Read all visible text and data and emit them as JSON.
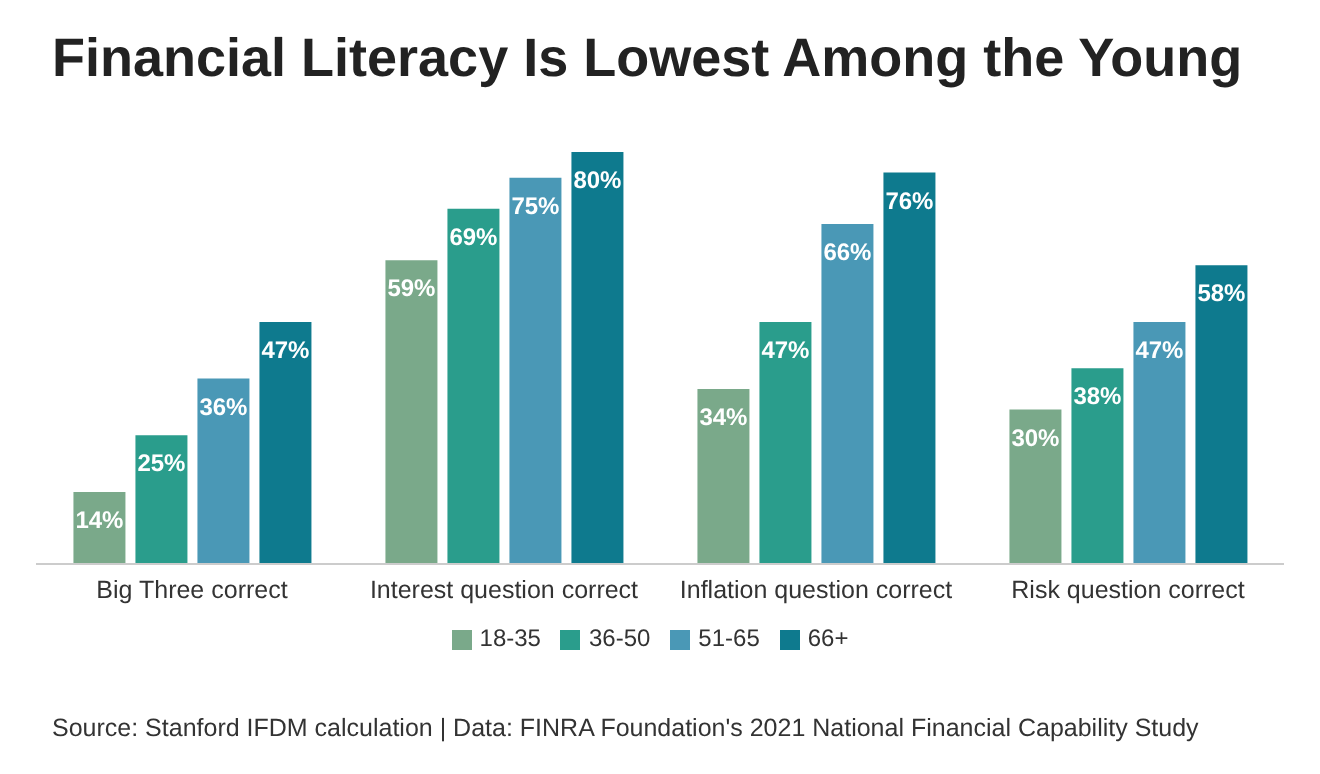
{
  "chart_data": {
    "type": "bar",
    "title": "Financial Literacy Is Lowest Among the Young",
    "categories": [
      "Big Three correct",
      "Interest question correct",
      "Inflation question correct",
      "Risk question correct"
    ],
    "series": [
      {
        "name": "18-35",
        "color": "#7aa98a",
        "values": [
          14,
          59,
          34,
          30
        ],
        "value_labels": [
          "14%",
          "59%",
          "34%",
          "30%"
        ]
      },
      {
        "name": "36-50",
        "color": "#2a9d8c",
        "values": [
          25,
          69,
          47,
          38
        ],
        "value_labels": [
          "25%",
          "69%",
          "47%",
          "38%"
        ]
      },
      {
        "name": "51-65",
        "color": "#4a98b6",
        "values": [
          36,
          75,
          66,
          47
        ],
        "value_labels": [
          "36%",
          "75%",
          "66%",
          "47%"
        ]
      },
      {
        "name": "66+",
        "color": "#0e7a8e",
        "values": [
          47,
          80,
          76,
          58
        ],
        "value_labels": [
          "47%",
          "80%",
          "76%",
          "58%"
        ]
      }
    ],
    "legend": "bottom",
    "grid": false,
    "annotations": [
      "Source: Stanford IFDM calculation | Data: FINRA Foundation's 2021 National Financial Capability Study"
    ]
  }
}
